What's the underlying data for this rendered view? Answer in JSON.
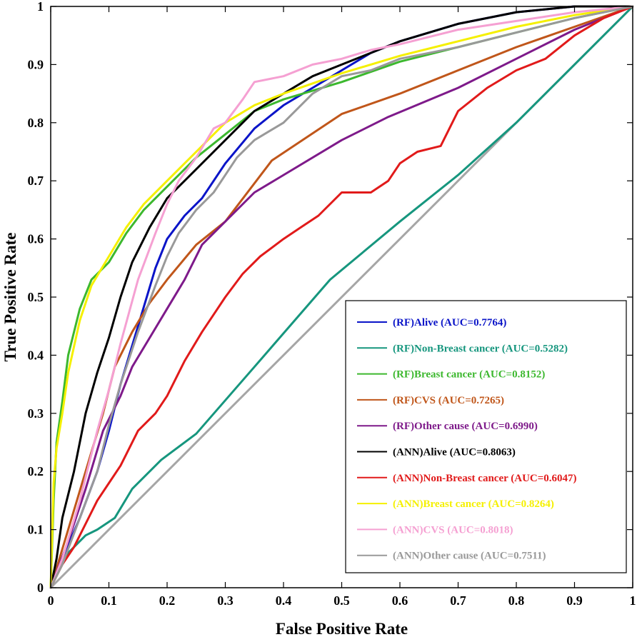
{
  "chart_data": {
    "type": "line",
    "xlabel": "False Positive Rate",
    "ylabel": "True Positive Rate",
    "xlim": [
      0,
      1
    ],
    "ylim": [
      0,
      1
    ],
    "xticks": [
      "0",
      "0.1",
      "0.2",
      "0.3",
      "0.4",
      "0.5",
      "0.6",
      "0.7",
      "0.8",
      "0.9",
      "1"
    ],
    "yticks": [
      "0",
      "0.1",
      "0.2",
      "0.3",
      "0.4",
      "0.5",
      "0.6",
      "0.7",
      "0.8",
      "0.9",
      "1"
    ],
    "grid": false,
    "legend_position": "bottom-right",
    "reference_line": {
      "x": [
        0,
        1
      ],
      "y": [
        0,
        1
      ],
      "color": "#a6a6a6"
    },
    "series": [
      {
        "name": "(RF)Alive (AUC=0.7764)",
        "color": "#0a14c8",
        "x": [
          0,
          0.02,
          0.05,
          0.08,
          0.1,
          0.12,
          0.15,
          0.18,
          0.2,
          0.23,
          0.26,
          0.3,
          0.35,
          0.4,
          0.45,
          0.5,
          0.55,
          0.6,
          0.7,
          0.8,
          0.9,
          1
        ],
        "y": [
          0,
          0.05,
          0.12,
          0.2,
          0.27,
          0.35,
          0.45,
          0.55,
          0.6,
          0.64,
          0.67,
          0.73,
          0.79,
          0.83,
          0.86,
          0.89,
          0.92,
          0.94,
          0.97,
          0.99,
          1,
          1
        ]
      },
      {
        "name": "(RF)Non-Breast cancer (AUC=0.5282)",
        "color": "#16967e",
        "x": [
          0,
          0.01,
          0.03,
          0.06,
          0.08,
          0.11,
          0.14,
          0.19,
          0.25,
          0.35,
          0.48,
          0.6,
          0.7,
          0.8,
          0.9,
          1
        ],
        "y": [
          0,
          0.03,
          0.06,
          0.09,
          0.1,
          0.12,
          0.17,
          0.22,
          0.265,
          0.38,
          0.53,
          0.63,
          0.71,
          0.8,
          0.9,
          1
        ]
      },
      {
        "name": "(RF)Breast cancer (AUC=0.8152)",
        "color": "#3cb82e",
        "x": [
          0,
          0.005,
          0.01,
          0.02,
          0.03,
          0.05,
          0.07,
          0.1,
          0.13,
          0.16,
          0.2,
          0.25,
          0.3,
          0.35,
          0.4,
          0.5,
          0.6,
          0.7,
          0.8,
          0.9,
          1
        ],
        "y": [
          0,
          0.15,
          0.25,
          0.32,
          0.4,
          0.48,
          0.53,
          0.56,
          0.61,
          0.65,
          0.69,
          0.74,
          0.78,
          0.82,
          0.84,
          0.87,
          0.905,
          0.93,
          0.955,
          0.98,
          1
        ]
      },
      {
        "name": "(RF)CVS (AUC=0.7265)",
        "color": "#c0561a",
        "x": [
          0,
          0.03,
          0.06,
          0.09,
          0.11,
          0.14,
          0.17,
          0.2,
          0.25,
          0.3,
          0.38,
          0.5,
          0.6,
          0.7,
          0.8,
          0.9,
          1
        ],
        "y": [
          0,
          0.1,
          0.2,
          0.3,
          0.38,
          0.44,
          0.49,
          0.53,
          0.59,
          0.63,
          0.735,
          0.815,
          0.85,
          0.89,
          0.93,
          0.965,
          1
        ]
      },
      {
        "name": "(RF)Other cause (AUC=0.6990)",
        "color": "#7e1a8a",
        "x": [
          0,
          0.03,
          0.06,
          0.09,
          0.12,
          0.14,
          0.17,
          0.2,
          0.23,
          0.26,
          0.3,
          0.35,
          0.4,
          0.5,
          0.58,
          0.7,
          0.8,
          0.9,
          1
        ],
        "y": [
          0,
          0.08,
          0.17,
          0.27,
          0.33,
          0.38,
          0.43,
          0.48,
          0.53,
          0.59,
          0.63,
          0.68,
          0.71,
          0.77,
          0.81,
          0.86,
          0.91,
          0.96,
          1
        ]
      },
      {
        "name": "(ANN)Alive (AUC=0.8063)",
        "color": "#000000",
        "x": [
          0,
          0.01,
          0.02,
          0.04,
          0.06,
          0.08,
          0.1,
          0.12,
          0.14,
          0.17,
          0.2,
          0.25,
          0.3,
          0.35,
          0.4,
          0.45,
          0.5,
          0.55,
          0.6,
          0.7,
          0.8,
          0.9,
          1
        ],
        "y": [
          0,
          0.05,
          0.12,
          0.2,
          0.3,
          0.37,
          0.43,
          0.5,
          0.56,
          0.62,
          0.67,
          0.72,
          0.77,
          0.82,
          0.85,
          0.88,
          0.9,
          0.92,
          0.94,
          0.97,
          0.99,
          1,
          1
        ]
      },
      {
        "name": "(ANN)Non-Breast cancer (AUC=0.6047)",
        "color": "#e11a1a",
        "x": [
          0,
          0.02,
          0.04,
          0.06,
          0.08,
          0.1,
          0.12,
          0.15,
          0.18,
          0.2,
          0.23,
          0.26,
          0.28,
          0.3,
          0.33,
          0.36,
          0.4,
          0.43,
          0.46,
          0.5,
          0.55,
          0.58,
          0.6,
          0.63,
          0.67,
          0.7,
          0.75,
          0.8,
          0.85,
          0.9,
          0.95,
          1
        ],
        "y": [
          0,
          0.04,
          0.07,
          0.11,
          0.15,
          0.18,
          0.21,
          0.27,
          0.3,
          0.33,
          0.39,
          0.44,
          0.47,
          0.5,
          0.54,
          0.57,
          0.6,
          0.62,
          0.64,
          0.68,
          0.68,
          0.7,
          0.73,
          0.75,
          0.76,
          0.82,
          0.86,
          0.89,
          0.91,
          0.95,
          0.98,
          1
        ]
      },
      {
        "name": "(ANN)Breast cancer (AUC=0.8264)",
        "color": "#f5f000",
        "x": [
          0,
          0.005,
          0.01,
          0.02,
          0.03,
          0.05,
          0.07,
          0.1,
          0.13,
          0.16,
          0.2,
          0.25,
          0.3,
          0.35,
          0.4,
          0.5,
          0.6,
          0.7,
          0.8,
          0.9,
          1
        ],
        "y": [
          0,
          0.18,
          0.24,
          0.3,
          0.37,
          0.46,
          0.52,
          0.57,
          0.62,
          0.66,
          0.7,
          0.75,
          0.8,
          0.83,
          0.85,
          0.885,
          0.915,
          0.94,
          0.965,
          0.985,
          1
        ]
      },
      {
        "name": "(ANN)CVS (AUC=0.8018)",
        "color": "#f5a0d2",
        "x": [
          0,
          0.02,
          0.05,
          0.08,
          0.1,
          0.12,
          0.15,
          0.18,
          0.2,
          0.22,
          0.25,
          0.28,
          0.3,
          0.33,
          0.35,
          0.4,
          0.45,
          0.5,
          0.55,
          0.6,
          0.7,
          0.8,
          0.9,
          1
        ],
        "y": [
          0,
          0.05,
          0.15,
          0.27,
          0.34,
          0.42,
          0.53,
          0.61,
          0.66,
          0.7,
          0.74,
          0.79,
          0.8,
          0.84,
          0.87,
          0.88,
          0.9,
          0.91,
          0.925,
          0.935,
          0.96,
          0.975,
          0.99,
          1
        ]
      },
      {
        "name": "(ANN)Other cause (AUC=0.7511)",
        "color": "#999999",
        "x": [
          0,
          0.02,
          0.05,
          0.08,
          0.1,
          0.12,
          0.15,
          0.18,
          0.2,
          0.22,
          0.25,
          0.28,
          0.3,
          0.32,
          0.35,
          0.4,
          0.45,
          0.5,
          0.55,
          0.6,
          0.7,
          0.8,
          0.9,
          1
        ],
        "y": [
          0,
          0.04,
          0.12,
          0.2,
          0.28,
          0.35,
          0.44,
          0.52,
          0.57,
          0.61,
          0.65,
          0.68,
          0.71,
          0.74,
          0.77,
          0.8,
          0.85,
          0.88,
          0.89,
          0.91,
          0.93,
          0.955,
          0.98,
          1
        ]
      }
    ]
  }
}
